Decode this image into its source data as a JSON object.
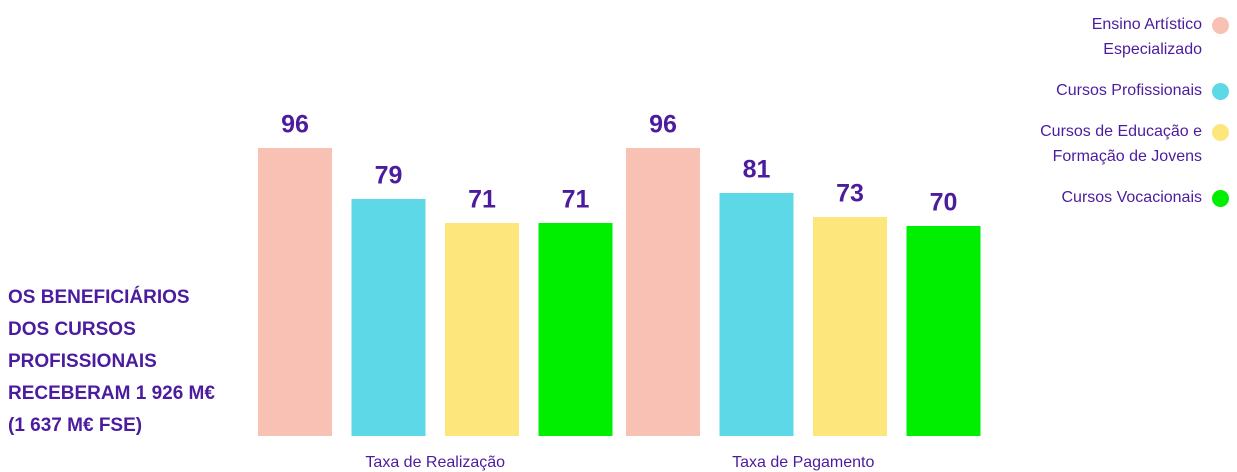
{
  "chart_data": {
    "type": "bar",
    "categories": [
      "Taxa de Realização",
      "Taxa de Pagamento"
    ],
    "series": [
      {
        "name": "Ensino Artístico Especializado",
        "color": "#f9c1b4",
        "values": [
          96,
          96
        ]
      },
      {
        "name": "Cursos Profissionais",
        "color": "#5dd8e6",
        "values": [
          79,
          81
        ]
      },
      {
        "name": "Cursos de Educação e Formação de Jovens",
        "color": "#fde77c",
        "values": [
          71,
          73
        ]
      },
      {
        "name": "Cursos Vocacionais",
        "color": "#00ef00",
        "values": [
          71,
          70
        ]
      }
    ],
    "ylim": [
      0,
      100
    ],
    "legend": "top-right",
    "annotation": [
      "OS BENEFICIÁRIOS",
      "DOS CURSOS",
      "PROFISSIONAIS",
      "RECEBERAM 1 926 M€",
      "(1 637 M€ FSE)"
    ]
  }
}
